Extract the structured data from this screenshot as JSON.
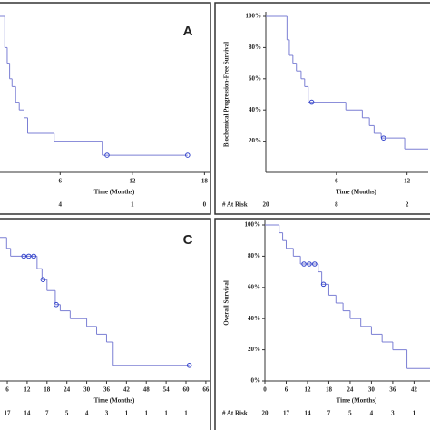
{
  "chart_data": [
    {
      "type": "line",
      "panel_label": "A",
      "xlabel": "Time (Months)",
      "xlim": [
        1,
        18.5
      ],
      "xticks": [
        6,
        12,
        18
      ],
      "ylim": [
        0,
        100
      ],
      "x": [
        0,
        1.4,
        1.6,
        1.8,
        2.0,
        2.3,
        2.6,
        3.0,
        3.3,
        5.5,
        9.5,
        16.6
      ],
      "series": [
        {
          "color": "#7b7fd4",
          "values": [
            100,
            80,
            70,
            60,
            55,
            45,
            40,
            35,
            25,
            20,
            11,
            11
          ]
        }
      ],
      "censored": {
        "color": "#3344cc",
        "x": [
          9.9,
          16.6
        ],
        "values": [
          11,
          11
        ]
      },
      "at_risk_x": [
        6,
        12,
        18
      ],
      "at_risk": [
        4,
        1,
        0
      ]
    },
    {
      "type": "line",
      "ylabel": "Biochemical Progression-Free Survival",
      "xlabel": "Time (Months)",
      "xlim": [
        0,
        13.8
      ],
      "xticks": [
        6,
        12
      ],
      "ylim": [
        0,
        100
      ],
      "yticks": [
        {
          "value": 20,
          "label": "20%"
        },
        {
          "value": 40,
          "label": "40%"
        },
        {
          "value": 60,
          "label": "60%"
        },
        {
          "value": 80,
          "label": "80%"
        },
        {
          "value": 100,
          "label": "100%"
        }
      ],
      "x": [
        0,
        1.8,
        2.0,
        2.3,
        2.6,
        3.0,
        3.3,
        3.6,
        6.8,
        8.2,
        8.8,
        9.2,
        9.8,
        11.8,
        13.8
      ],
      "series": [
        {
          "color": "#7b7fd4",
          "values": [
            100,
            85,
            75,
            70,
            65,
            60,
            55,
            45,
            40,
            35,
            30,
            25,
            22,
            15,
            15
          ]
        }
      ],
      "censored": {
        "color": "#3344cc",
        "x": [
          3.9,
          10.0
        ],
        "values": [
          45,
          22
        ]
      },
      "at_risk_label": "# At Risk",
      "at_risk_x": [
        0,
        6,
        12
      ],
      "at_risk": [
        20,
        8,
        2
      ]
    },
    {
      "type": "line",
      "panel_label": "C",
      "xlabel": "Time (Months)",
      "xlim": [
        3.8,
        67.4
      ],
      "xticks": [
        6,
        12,
        18,
        24,
        30,
        36,
        42,
        48,
        54,
        60,
        66
      ],
      "ylim": [
        0,
        100
      ],
      "x": [
        0,
        5.8,
        7,
        15,
        16.5,
        18,
        20.5,
        22,
        25,
        30,
        33,
        36,
        38,
        61
      ],
      "series": [
        {
          "color": "#7b7fd4",
          "values": [
            92,
            85,
            80,
            72,
            65,
            58,
            49,
            45,
            40,
            35,
            30,
            25,
            10,
            10
          ]
        }
      ],
      "censored": {
        "color": "#3344cc",
        "x": [
          11,
          12.5,
          14,
          16.8,
          20.8,
          61
        ],
        "values": [
          80,
          80,
          80,
          65,
          49,
          10
        ]
      },
      "at_risk_x": [
        6,
        12,
        18,
        24,
        30,
        36,
        42,
        48,
        54,
        60
      ],
      "at_risk": [
        17,
        14,
        7,
        5,
        4,
        3,
        1,
        1,
        1,
        1
      ]
    },
    {
      "type": "line",
      "ylabel": "Overall Survival",
      "xlabel": "Time (Months)",
      "xlim": [
        0,
        46.5
      ],
      "xticks": [
        0,
        6,
        12,
        18,
        24,
        30,
        36,
        42
      ],
      "ylim": [
        0,
        100
      ],
      "yticks": [
        {
          "value": 0,
          "label": "0%"
        },
        {
          "value": 20,
          "label": "20%"
        },
        {
          "value": 40,
          "label": "40%"
        },
        {
          "value": 60,
          "label": "60%"
        },
        {
          "value": 80,
          "label": "80%"
        },
        {
          "value": 100,
          "label": "100%"
        }
      ],
      "x": [
        0,
        4,
        5,
        6,
        8,
        10,
        15,
        16,
        18,
        20,
        22,
        24,
        27,
        30,
        33,
        36,
        40,
        46.5
      ],
      "series": [
        {
          "color": "#7b7fd4",
          "values": [
            100,
            95,
            90,
            85,
            80,
            75,
            70,
            62,
            55,
            50,
            45,
            40,
            35,
            30,
            25,
            20,
            8,
            8
          ]
        }
      ],
      "censored": {
        "color": "#3344cc",
        "x": [
          11,
          12.5,
          14,
          16.5
        ],
        "values": [
          75,
          75,
          75,
          62
        ]
      },
      "at_risk_label": "# At Risk",
      "at_risk_x": [
        0,
        6,
        12,
        18,
        24,
        30,
        36,
        42
      ],
      "at_risk": [
        20,
        17,
        14,
        7,
        5,
        4,
        3,
        1
      ]
    }
  ]
}
